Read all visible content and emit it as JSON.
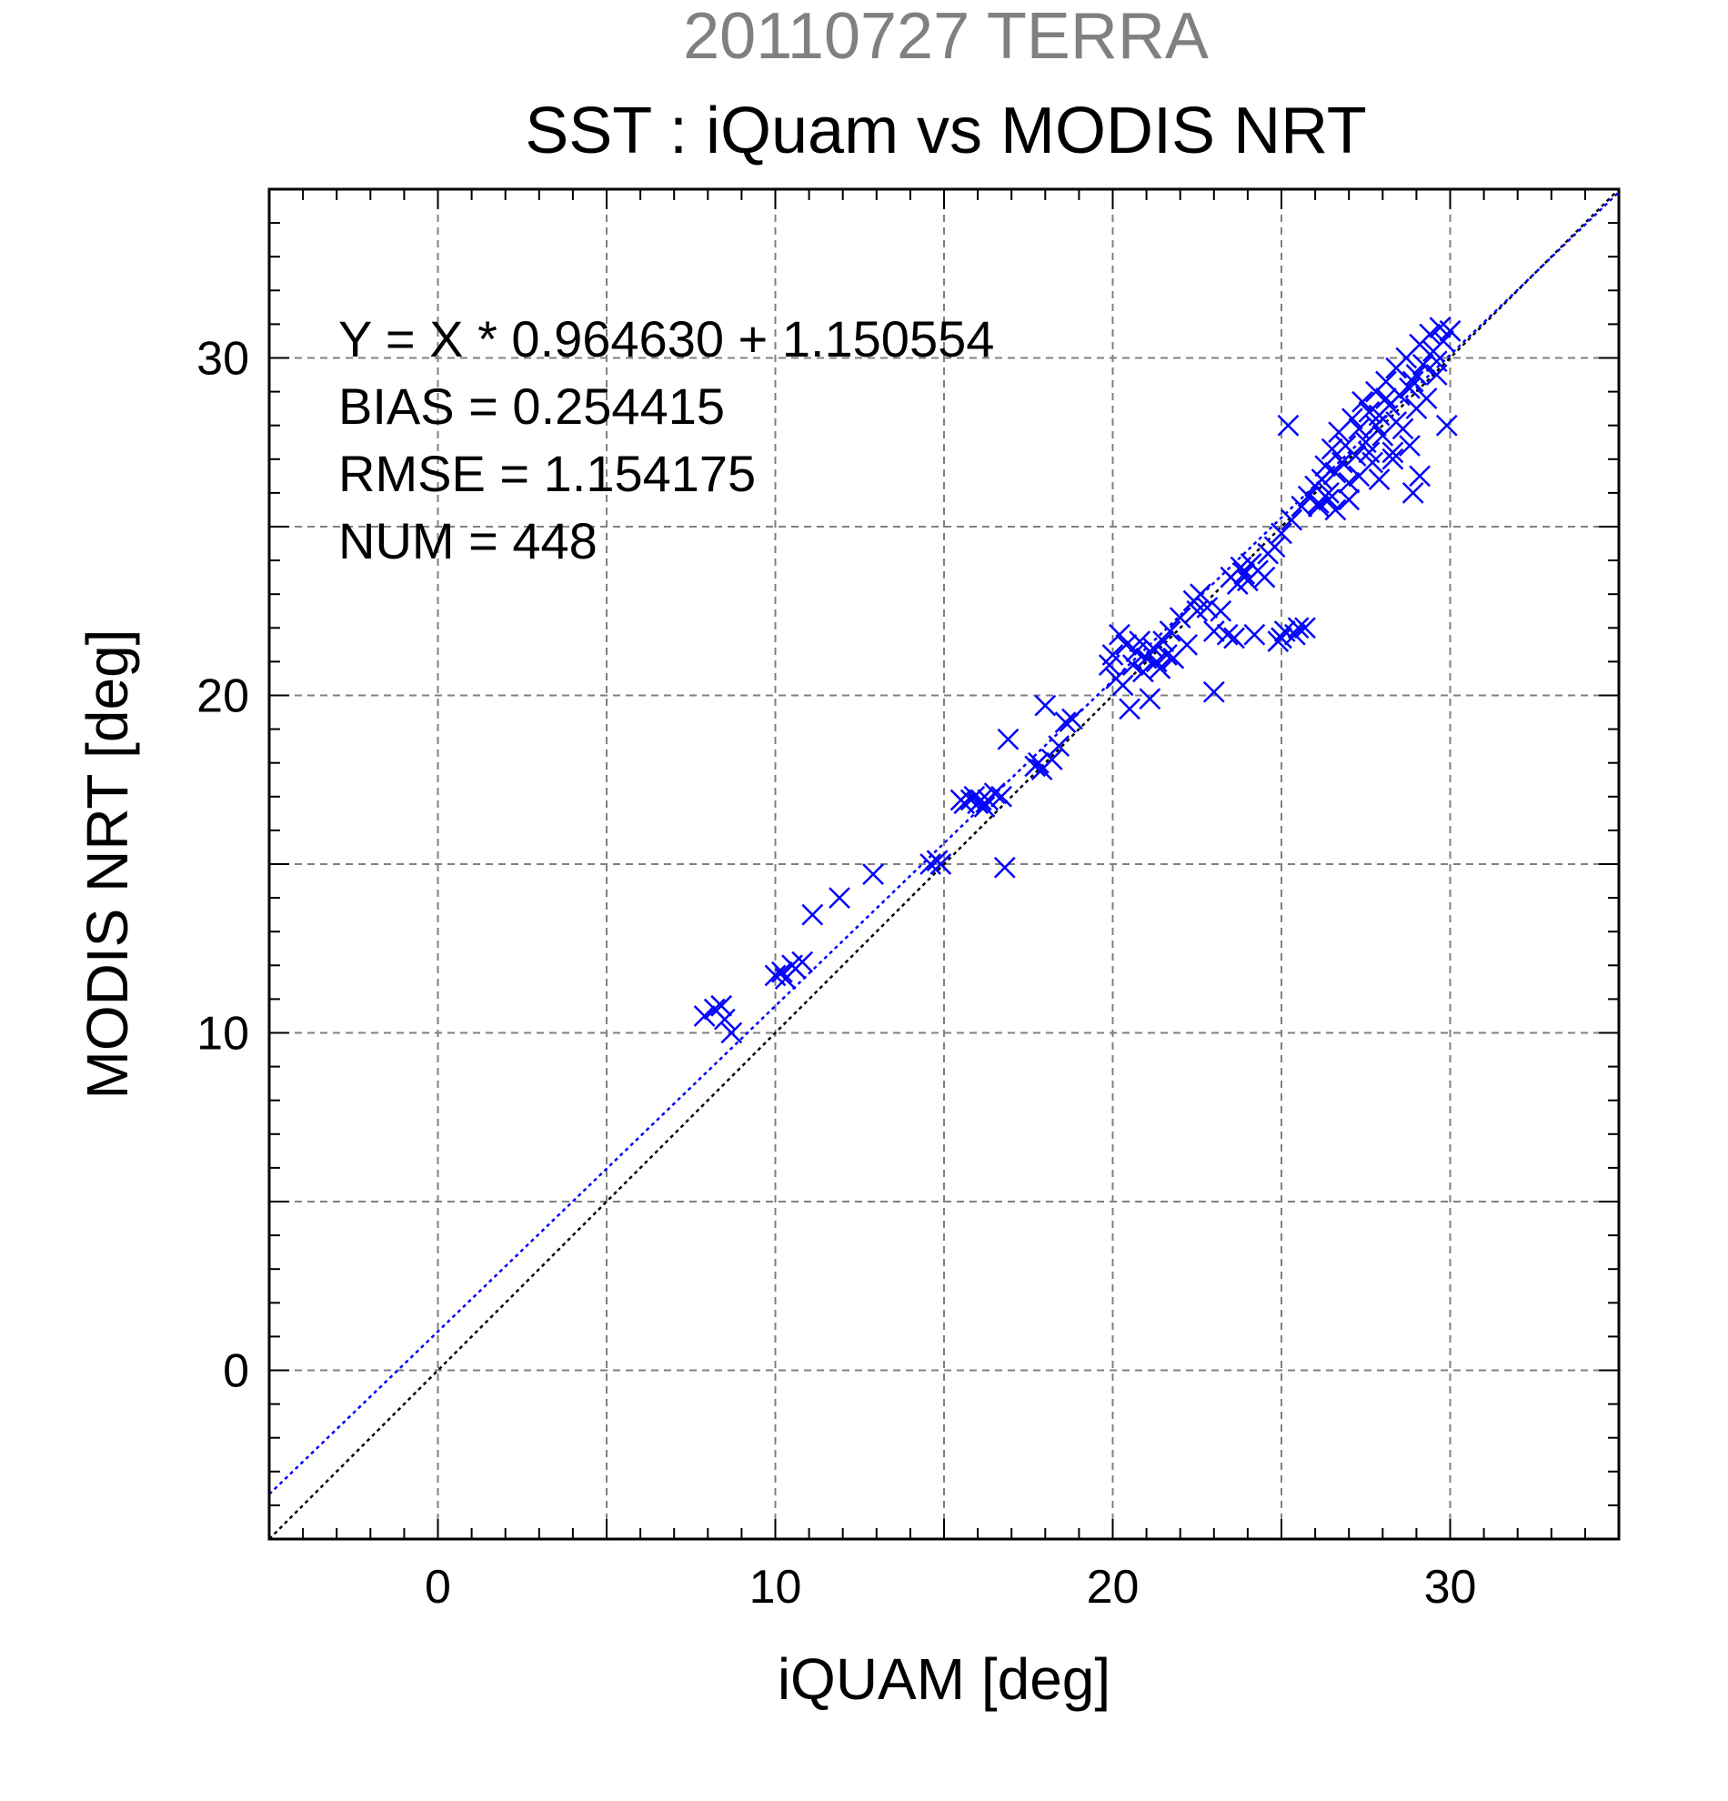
{
  "chart_data": {
    "type": "scatter",
    "supertitle": "20110727 TERRA",
    "title": "SST : iQuam vs MODIS NRT",
    "xlabel": "iQUAM [deg]",
    "ylabel": "MODIS NRT [deg]",
    "xlim": [
      -5,
      35
    ],
    "ylim": [
      -5,
      35
    ],
    "xticks": [
      0,
      10,
      20,
      30
    ],
    "yticks": [
      0,
      10,
      20,
      30
    ],
    "grid_step": 5,
    "grid": true,
    "marker": "x",
    "colors": {
      "points": "#0000ff",
      "fit_line": "#0000ff",
      "identity_line": "#000000",
      "grid": "#808080"
    },
    "stats": [
      "Y = X * 0.964630 + 1.150554",
      "BIAS = 0.254415",
      "RMSE = 1.154175",
      "NUM = 448"
    ],
    "fit": {
      "slope": 0.96463,
      "intercept": 1.150554
    },
    "points": [
      [
        7.9,
        10.5
      ],
      [
        8.2,
        10.7
      ],
      [
        8.4,
        10.8
      ],
      [
        8.5,
        10.4
      ],
      [
        8.7,
        10.0
      ],
      [
        10.0,
        11.7
      ],
      [
        10.2,
        11.8
      ],
      [
        10.3,
        11.6
      ],
      [
        10.5,
        12.0
      ],
      [
        10.6,
        11.9
      ],
      [
        10.8,
        12.1
      ],
      [
        11.1,
        13.5
      ],
      [
        11.9,
        14.0
      ],
      [
        12.9,
        14.7
      ],
      [
        14.6,
        15.0
      ],
      [
        14.8,
        15.1
      ],
      [
        14.9,
        15.0
      ],
      [
        15.5,
        16.9
      ],
      [
        15.6,
        16.8
      ],
      [
        15.8,
        16.9
      ],
      [
        15.9,
        17.0
      ],
      [
        16.0,
        16.8
      ],
      [
        16.1,
        16.9
      ],
      [
        16.2,
        16.7
      ],
      [
        16.3,
        16.9
      ],
      [
        16.5,
        17.1
      ],
      [
        16.7,
        17.0
      ],
      [
        16.9,
        18.7
      ],
      [
        16.8,
        14.9
      ],
      [
        17.7,
        17.9
      ],
      [
        17.8,
        18.0
      ],
      [
        17.9,
        17.8
      ],
      [
        18.0,
        19.7
      ],
      [
        18.2,
        18.1
      ],
      [
        18.4,
        18.5
      ],
      [
        18.6,
        19.2
      ],
      [
        18.8,
        19.3
      ],
      [
        19.9,
        20.9
      ],
      [
        20.0,
        21.2
      ],
      [
        20.1,
        20.5
      ],
      [
        20.2,
        21.8
      ],
      [
        20.3,
        20.3
      ],
      [
        20.4,
        21.5
      ],
      [
        20.5,
        19.6
      ],
      [
        20.6,
        20.9
      ],
      [
        20.7,
        21.3
      ],
      [
        20.8,
        21.6
      ],
      [
        20.9,
        20.7
      ],
      [
        21.0,
        21.1
      ],
      [
        21.1,
        19.9
      ],
      [
        21.2,
        21.4
      ],
      [
        21.3,
        21.0
      ],
      [
        21.4,
        20.8
      ],
      [
        21.5,
        21.6
      ],
      [
        21.6,
        21.2
      ],
      [
        21.7,
        21.9
      ],
      [
        21.8,
        21.1
      ],
      [
        22.0,
        22.3
      ],
      [
        22.2,
        21.5
      ],
      [
        22.4,
        22.8
      ],
      [
        22.5,
        22.5
      ],
      [
        22.6,
        23.0
      ],
      [
        22.8,
        22.6
      ],
      [
        23.0,
        20.1
      ],
      [
        23.0,
        21.9
      ],
      [
        23.2,
        22.5
      ],
      [
        23.4,
        21.8
      ],
      [
        23.5,
        23.5
      ],
      [
        23.6,
        21.7
      ],
      [
        23.7,
        23.3
      ],
      [
        23.8,
        23.8
      ],
      [
        23.9,
        23.6
      ],
      [
        24.0,
        23.4
      ],
      [
        24.1,
        23.9
      ],
      [
        24.2,
        21.8
      ],
      [
        24.3,
        23.7
      ],
      [
        24.5,
        23.5
      ],
      [
        24.6,
        24.2
      ],
      [
        24.8,
        24.4
      ],
      [
        24.9,
        21.6
      ],
      [
        25.0,
        21.7
      ],
      [
        25.0,
        24.8
      ],
      [
        25.1,
        21.9
      ],
      [
        25.2,
        28.0
      ],
      [
        25.3,
        25.2
      ],
      [
        25.4,
        21.8
      ],
      [
        25.5,
        22.0
      ],
      [
        25.6,
        25.6
      ],
      [
        25.7,
        22.0
      ],
      [
        25.8,
        25.9
      ],
      [
        26.0,
        26.2
      ],
      [
        26.1,
        25.7
      ],
      [
        26.2,
        26.4
      ],
      [
        26.3,
        26.8
      ],
      [
        26.4,
        26.0
      ],
      [
        26.5,
        27.3
      ],
      [
        26.6,
        26.6
      ],
      [
        26.7,
        27.8
      ],
      [
        26.8,
        26.9
      ],
      [
        26.9,
        27.4
      ],
      [
        27.0,
        26.3
      ],
      [
        27.1,
        28.2
      ],
      [
        27.2,
        27.1
      ],
      [
        27.3,
        27.9
      ],
      [
        27.4,
        28.7
      ],
      [
        27.5,
        27.5
      ],
      [
        27.6,
        28.4
      ],
      [
        27.7,
        26.9
      ],
      [
        27.8,
        29.0
      ],
      [
        27.9,
        28.3
      ],
      [
        28.0,
        27.7
      ],
      [
        28.1,
        29.3
      ],
      [
        28.2,
        28.6
      ],
      [
        28.3,
        27.2
      ],
      [
        28.4,
        29.7
      ],
      [
        28.5,
        28.9
      ],
      [
        28.6,
        27.9
      ],
      [
        28.7,
        30.0
      ],
      [
        28.8,
        29.1
      ],
      [
        28.9,
        26.0
      ],
      [
        29.0,
        29.5
      ],
      [
        29.0,
        28.5
      ],
      [
        29.1,
        30.4
      ],
      [
        29.2,
        29.8
      ],
      [
        29.3,
        28.8
      ],
      [
        29.4,
        30.7
      ],
      [
        29.5,
        30.2
      ],
      [
        29.6,
        29.5
      ],
      [
        29.7,
        30.9
      ],
      [
        29.8,
        30.5
      ],
      [
        29.9,
        28.0
      ],
      [
        30.0,
        30.8
      ],
      [
        27.3,
        26.5
      ],
      [
        27.9,
        26.4
      ],
      [
        28.3,
        27.0
      ],
      [
        28.8,
        27.4
      ],
      [
        29.1,
        26.5
      ],
      [
        26.1,
        25.6
      ],
      [
        26.4,
        25.8
      ],
      [
        26.6,
        25.5
      ],
      [
        27.0,
        25.8
      ],
      [
        27.6,
        27.2
      ],
      [
        28.4,
        28.1
      ],
      [
        28.9,
        29.3
      ],
      [
        29.6,
        29.9
      ],
      [
        28.1,
        28.8
      ],
      [
        27.8,
        28.0
      ]
    ]
  }
}
